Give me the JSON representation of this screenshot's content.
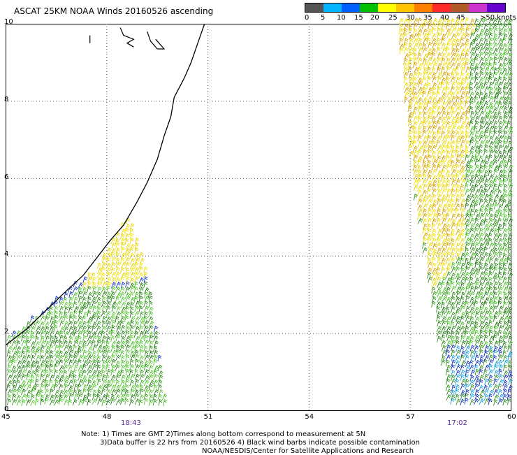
{
  "title": "ASCAT 25KM NOAA Winds 20160526 ascending",
  "legend": {
    "colors": [
      "#555555",
      "#00b4ff",
      "#0060ff",
      "#00c000",
      "#ffff00",
      "#ffc400",
      "#ff7f00",
      "#ff2a2a",
      "#b05a2a",
      "#cc33cc",
      "#6600cc"
    ],
    "labels": [
      "0",
      "5",
      "10",
      "15",
      "20",
      "25",
      "30",
      "35",
      "40",
      "45",
      ">50 knots"
    ]
  },
  "axes": {
    "x_ticks": [
      "45",
      "48",
      "51",
      "54",
      "57",
      "60"
    ],
    "y_ticks": [
      "0",
      "2",
      "4",
      "6",
      "8",
      "10"
    ],
    "x_range": [
      45,
      60
    ],
    "y_range": [
      0,
      10
    ],
    "grid": "dotted"
  },
  "times": [
    "18:43",
    "17:02"
  ],
  "notes": {
    "line1": "Note: 1) Times are GMT 2)Times along bottom correspond to measurement at 5N",
    "line2": "3)Data buffer is 22 hrs from 20160526 4) Black wind barbs indicate possible contamination",
    "line3": "NOAA/NESDIS/Center for Satellite Applications and Research"
  },
  "swaths": [
    {
      "name": "west-swath",
      "polygon": [
        [
          45,
          0.1
        ],
        [
          45,
          1.8
        ],
        [
          47.6,
          3.6
        ],
        [
          48.6,
          5.0
        ],
        [
          49.2,
          3.4
        ],
        [
          49.7,
          0.1
        ]
      ],
      "zones": [
        {
          "poly": [
            [
              47.1,
              3.1
            ],
            [
              47.6,
              3.6
            ],
            [
              48.6,
              5.0
            ],
            [
              49.2,
              3.4
            ],
            [
              48.4,
              3.2
            ]
          ],
          "colors": [
            "#e6d400",
            "#f0e000"
          ]
        },
        {
          "poly": [
            [
              45,
              0.1
            ],
            [
              45,
              1.8
            ],
            [
              47.2,
              3.1
            ],
            [
              49.2,
              3.2
            ],
            [
              49.7,
              0.1
            ]
          ],
          "colors": [
            "#2f8f1a",
            "#3fbf1f",
            "#1f7a10",
            "#58c832"
          ]
        },
        {
          "poly": [
            [
              45.9,
              2.0
            ],
            [
              47.0,
              3.0
            ],
            [
              48.3,
              3.2
            ],
            [
              48.0,
              2.4
            ],
            [
              46.5,
              2.0
            ]
          ],
          "colors": [
            "#1030c0",
            "#2f8f1a"
          ]
        }
      ]
    },
    {
      "name": "east-swath",
      "polygon": [
        [
          56.6,
          10
        ],
        [
          60,
          10
        ],
        [
          60,
          0.1
        ],
        [
          58.1,
          0.1
        ],
        [
          57.0,
          6.0
        ]
      ],
      "zones": [
        {
          "poly": [
            [
              56.6,
              10
            ],
            [
              58.8,
              10
            ],
            [
              58.5,
              4.0
            ],
            [
              57.6,
              3.0
            ],
            [
              57.0,
              6.0
            ]
          ],
          "colors": [
            "#f0e000",
            "#e6d400",
            "#d4a000"
          ]
        },
        {
          "poly": [
            [
              58.2,
              10
            ],
            [
              60,
              10
            ],
            [
              60,
              1.6
            ],
            [
              58.0,
              1.6
            ],
            [
              57.6,
              3.5
            ],
            [
              58.6,
              5.5
            ]
          ],
          "colors": [
            "#2f8f1a",
            "#1f7a10",
            "#3fbf1f"
          ]
        },
        {
          "poly": [
            [
              58.0,
              1.8
            ],
            [
              60,
              1.8
            ],
            [
              60,
              0.1
            ],
            [
              58.2,
              0.1
            ]
          ],
          "colors": [
            "#2f8f1a",
            "#1030c0",
            "#10a0e0"
          ]
        }
      ]
    }
  ],
  "coastline": [
    [
      45,
      1.7
    ],
    [
      45.6,
      2.1
    ],
    [
      46.2,
      2.6
    ],
    [
      46.8,
      3.1
    ],
    [
      47.3,
      3.5
    ],
    [
      47.7,
      3.95
    ],
    [
      48.1,
      4.4
    ],
    [
      48.5,
      4.8
    ],
    [
      48.9,
      5.4
    ],
    [
      49.2,
      5.9
    ],
    [
      49.5,
      6.5
    ],
    [
      49.7,
      7.1
    ],
    [
      49.9,
      7.6
    ],
    [
      50.0,
      8.1
    ],
    [
      50.3,
      8.6
    ],
    [
      50.5,
      9.0
    ],
    [
      50.7,
      9.5
    ],
    [
      50.9,
      10
    ]
  ],
  "islands": [
    [
      [
        47.5,
        9.7
      ],
      [
        47.5,
        9.5
      ]
    ],
    [
      [
        48.4,
        9.9
      ],
      [
        48.5,
        9.7
      ],
      [
        48.8,
        9.6
      ],
      [
        48.6,
        9.5
      ],
      [
        48.8,
        9.4
      ]
    ],
    [
      [
        49.2,
        9.8
      ],
      [
        49.3,
        9.55
      ],
      [
        49.5,
        9.35
      ],
      [
        49.7,
        9.35
      ],
      [
        49.45,
        9.6
      ]
    ]
  ]
}
